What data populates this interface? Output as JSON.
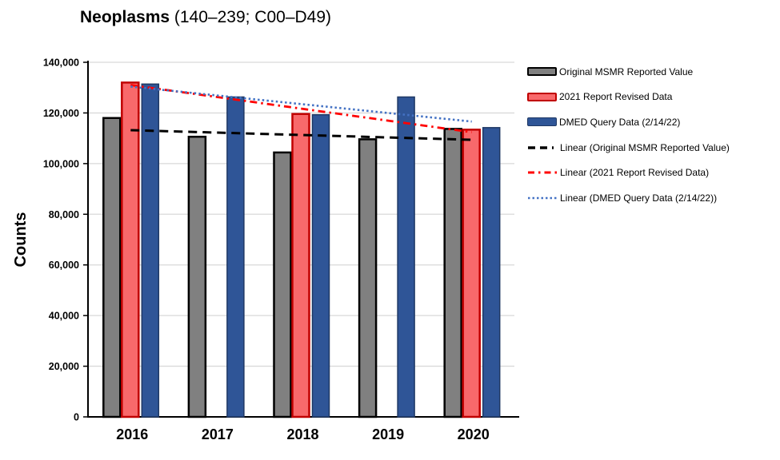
{
  "title": {
    "bold": "Neoplasms",
    "rest": " (140–239; C00–D49)"
  },
  "y_axis": {
    "label": "Counts",
    "ticks": [
      "0",
      "20,000",
      "40,000",
      "60,000",
      "80,000",
      "100,000",
      "120,000",
      "140,000"
    ],
    "max": 140000,
    "step": 20000
  },
  "x_axis": {
    "categories": [
      "2016",
      "2017",
      "2018",
      "2019",
      "2020"
    ]
  },
  "legend": {
    "items": [
      {
        "label": "Original MSMR Reported Value",
        "swatch": "bar",
        "fill": "#808080",
        "border": "#000000"
      },
      {
        "label": "2021 Report Revised Data",
        "swatch": "bar",
        "fill": "#F8696B",
        "border": "#C00000"
      },
      {
        "label": "DMED Query Data (2/14/22)",
        "swatch": "bar",
        "fill": "#2F5597",
        "border": "#1F3864"
      },
      {
        "label": "Linear (Original MSMR Reported Value)",
        "swatch": "line",
        "color": "#000000",
        "dash": "9 6 9 6 2",
        "width": 3.5
      },
      {
        "label": "Linear (2021 Report Revised Data)",
        "swatch": "line",
        "color": "#FF0000",
        "dash": "8 5 2.5 5",
        "width": 3
      },
      {
        "label": "Linear (DMED Query Data (2/14/22))",
        "swatch": "line",
        "color": "#4472C4",
        "dash": "2.5 3",
        "width": 2.5
      }
    ]
  },
  "chart_data": {
    "type": "bar",
    "title": "Neoplasms (140–239; C00–D49)",
    "xlabel": "",
    "ylabel": "Counts",
    "ylim": [
      0,
      140000
    ],
    "y_tick_step": 20000,
    "grid": true,
    "legend_position": "right",
    "categories": [
      "2016",
      "2017",
      "2018",
      "2019",
      "2020"
    ],
    "series": [
      {
        "name": "Original MSMR Reported Value",
        "color": "#808080",
        "border": "#000000",
        "values": [
          118000,
          110600,
          104400,
          109600,
          113700
        ]
      },
      {
        "name": "2021 Report Revised Data",
        "color": "#F8696B",
        "border": "#C00000",
        "values": [
          132000,
          null,
          119600,
          null,
          113400
        ]
      },
      {
        "name": "DMED Query Data (2/14/22)",
        "color": "#2F5597",
        "border": "#1F3864",
        "values": [
          131400,
          126300,
          119300,
          126300,
          114200
        ]
      }
    ],
    "trendlines": [
      {
        "name": "Linear (Original MSMR Reported Value)",
        "color": "#000000",
        "style": "dash",
        "start": 113200,
        "end": 109400
      },
      {
        "name": "Linear (2021 Report Revised Data)",
        "color": "#FF0000",
        "style": "dash-dot",
        "start": 131000,
        "end": 112400
      },
      {
        "name": "Linear (DMED Query Data (2/14/22))",
        "color": "#4472C4",
        "style": "dot",
        "start": 130400,
        "end": 116600
      }
    ]
  },
  "colors": {
    "gridline": "#D9D9D9",
    "axis": "#000000",
    "background": "#FFFFFF"
  }
}
